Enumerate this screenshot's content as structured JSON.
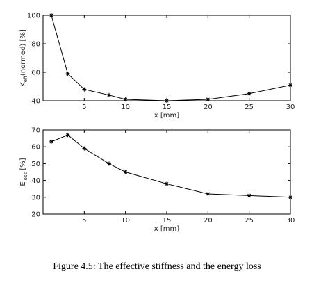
{
  "chart_data": [
    {
      "type": "line",
      "x": [
        1,
        3,
        5,
        8,
        10,
        15,
        20,
        25,
        30
      ],
      "values": [
        100,
        59,
        48,
        44,
        41,
        40,
        41,
        45,
        51
      ],
      "xlim": [
        0,
        30
      ],
      "xticks": [
        5,
        10,
        15,
        20,
        25,
        30
      ],
      "ylim": [
        40,
        100
      ],
      "yticks": [
        40,
        60,
        80,
        100
      ],
      "xlabel": "x [mm]",
      "ylabel": [
        "K",
        "eff",
        "(normed) [%]"
      ],
      "color": "#000000"
    },
    {
      "type": "line",
      "x": [
        1,
        3,
        5,
        8,
        10,
        15,
        20,
        25,
        30
      ],
      "values": [
        63,
        67,
        59,
        50,
        45,
        38,
        32,
        31,
        30
      ],
      "xlim": [
        0,
        30
      ],
      "xticks": [
        5,
        10,
        15,
        20,
        25,
        30
      ],
      "ylim": [
        20,
        70
      ],
      "yticks": [
        20,
        30,
        40,
        50,
        60,
        70
      ],
      "xlabel": "x [mm]",
      "ylabel": [
        "E",
        "loss",
        " [%]"
      ],
      "color": "#000000"
    }
  ],
  "caption": "Figure 4.5: The effective stiffness and the energy loss"
}
